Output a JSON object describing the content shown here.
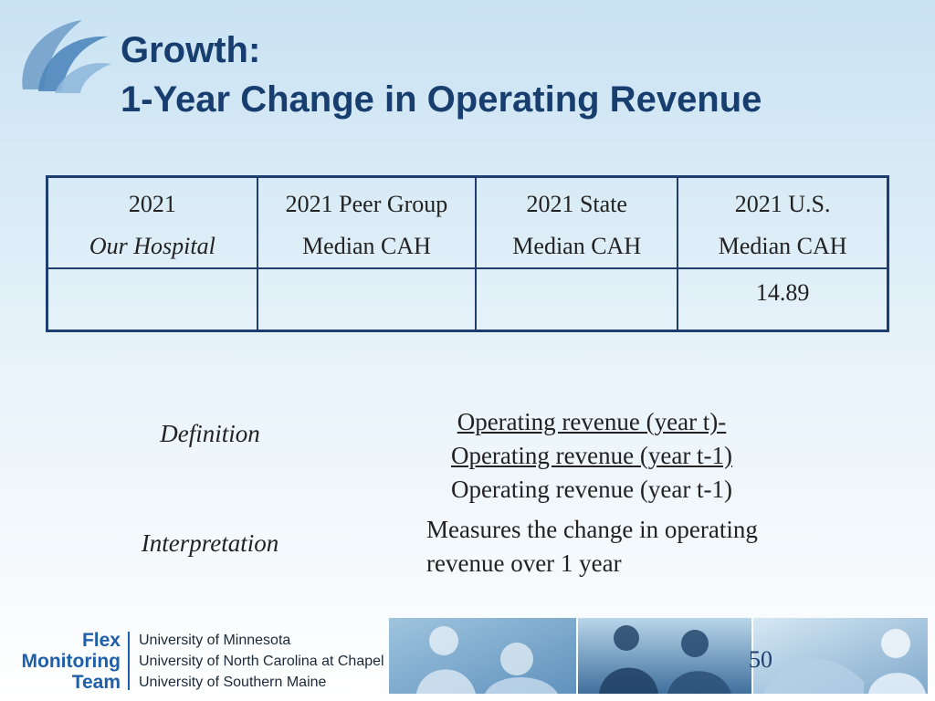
{
  "title": {
    "line1": "Growth:",
    "line2": "1-Year Change in Operating Revenue"
  },
  "table": {
    "headers": [
      {
        "line1": "2021",
        "line2": "Our Hospital"
      },
      {
        "line1": "2021 Peer Group",
        "line2": "Median CAH"
      },
      {
        "line1": "2021 State",
        "line2": "Median CAH"
      },
      {
        "line1": "2021 U.S.",
        "line2": "Median CAH"
      }
    ],
    "values": [
      "",
      "",
      "",
      "14.89"
    ]
  },
  "definition": {
    "label": "Definition",
    "numerator_line1": "Operating revenue (year t)-",
    "numerator_line2": "Operating revenue (year t-1)",
    "denominator": "Operating revenue (year t-1)"
  },
  "interpretation": {
    "label": "Interpretation",
    "line1": "Measures the change in operating",
    "line2": "revenue over 1 year"
  },
  "footer": {
    "brand_line1": "Flex",
    "brand_line2": "Monitoring",
    "brand_line3": "Team",
    "universities": [
      "University of Minnesota",
      "University of North Carolina at Chapel Hill",
      "University of Southern Maine"
    ],
    "page_number": "50"
  },
  "colors": {
    "title": "#173e6e",
    "table_border": "#1d3e6e",
    "brand_blue": "#1f5ea8"
  }
}
